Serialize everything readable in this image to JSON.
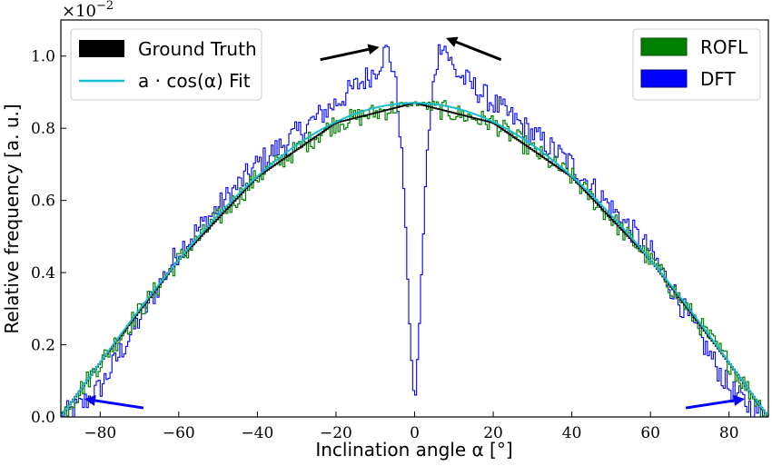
{
  "chart_data": {
    "type": "line",
    "title": "",
    "xlabel": "Inclination angle α [°]",
    "ylabel": "Relative frequency [a. u.]",
    "y_multiplier": "×10",
    "y_multiplier_exp": "−2",
    "xlim": [
      -90,
      90
    ],
    "ylim": [
      0,
      1.1
    ],
    "xticks": [
      -80,
      -60,
      -40,
      -20,
      0,
      20,
      40,
      60,
      80
    ],
    "xtick_labels": [
      "−80",
      "−60",
      "−40",
      "−20",
      "0",
      "20",
      "40",
      "60",
      "80"
    ],
    "yticks": [
      0.0,
      0.2,
      0.4,
      0.6,
      0.8,
      1.0
    ],
    "ytick_labels": [
      "0.0",
      "0.2",
      "0.4",
      "0.6",
      "0.8",
      "1.0"
    ],
    "grid": false,
    "legends": [
      {
        "placement": "top-left",
        "entries": [
          {
            "name": "Ground Truth",
            "color": "#000000",
            "style": "patch"
          },
          {
            "name": "a · cos(α) Fit",
            "color": "#17becf",
            "style": "line"
          }
        ]
      },
      {
        "placement": "top-right",
        "entries": [
          {
            "name": "ROFL",
            "color": "#008000",
            "style": "patch"
          },
          {
            "name": "DFT",
            "color": "#0000ff",
            "style": "patch"
          }
        ]
      }
    ],
    "fit": {
      "name": "a · cos(α) Fit",
      "amplitude": 0.87,
      "color": "#17becf"
    },
    "series": [
      {
        "name": "Ground Truth",
        "color": "#000000",
        "description": "step histogram following a·cos(α)",
        "x": [
          -90,
          -80,
          -60,
          -40,
          -20,
          0,
          20,
          40,
          60,
          80,
          90
        ],
        "y": [
          0.0,
          0.15,
          0.435,
          0.665,
          0.815,
          0.87,
          0.815,
          0.665,
          0.435,
          0.15,
          0.0
        ]
      },
      {
        "name": "ROFL",
        "color": "#008000",
        "x": [
          -90,
          -80,
          -60,
          -40,
          -20,
          0,
          20,
          40,
          60,
          80,
          90
        ],
        "y": [
          0.0,
          0.15,
          0.435,
          0.665,
          0.815,
          0.87,
          0.815,
          0.665,
          0.435,
          0.15,
          0.0
        ]
      },
      {
        "name": "DFT",
        "color": "#0000ff",
        "x": [
          -90,
          -85,
          -80,
          -60,
          -40,
          -20,
          -10,
          -7,
          -5,
          -3,
          -2,
          -1,
          0,
          1,
          2,
          3,
          5,
          7,
          10,
          20,
          40,
          60,
          80,
          85,
          90
        ],
        "y": [
          0.0,
          0.03,
          0.08,
          0.46,
          0.7,
          0.87,
          0.96,
          1.02,
          0.95,
          0.7,
          0.45,
          0.2,
          0.02,
          0.2,
          0.45,
          0.7,
          0.95,
          1.05,
          0.96,
          0.87,
          0.7,
          0.46,
          0.08,
          0.03,
          0.0
        ]
      }
    ],
    "annotations": [
      {
        "type": "arrow",
        "color": "#000000",
        "from": [
          -24,
          0.99
        ],
        "to": [
          -9,
          1.025
        ]
      },
      {
        "type": "arrow",
        "color": "#000000",
        "from": [
          22,
          0.99
        ],
        "to": [
          8,
          1.05
        ]
      },
      {
        "type": "arrow",
        "color": "#0000ff",
        "from": [
          -69,
          0.025
        ],
        "to": [
          -84,
          0.05
        ]
      },
      {
        "type": "arrow",
        "color": "#0000ff",
        "from": [
          69,
          0.025
        ],
        "to": [
          84,
          0.05
        ]
      }
    ]
  }
}
